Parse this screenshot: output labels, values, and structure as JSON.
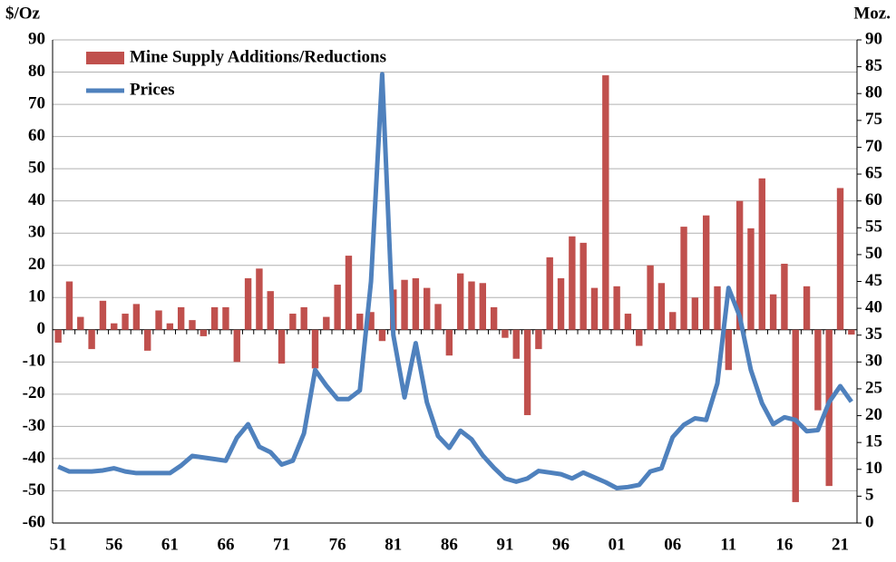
{
  "chart_data": {
    "type": "combo",
    "y_label": "$/Oz",
    "y2_label": "Moz.",
    "categories": [
      "51",
      null,
      null,
      null,
      null,
      "56",
      null,
      null,
      null,
      null,
      "61",
      null,
      null,
      null,
      null,
      "66",
      null,
      null,
      null,
      null,
      "71",
      null,
      null,
      null,
      null,
      "76",
      null,
      null,
      null,
      null,
      "81",
      null,
      null,
      null,
      null,
      "86",
      null,
      null,
      null,
      null,
      "91",
      null,
      null,
      null,
      null,
      "96",
      null,
      null,
      null,
      null,
      "01",
      null,
      null,
      null,
      null,
      "06",
      null,
      null,
      null,
      null,
      "11",
      null,
      null,
      null,
      null,
      "16",
      null,
      null,
      null,
      null,
      "21",
      null
    ],
    "series": [
      {
        "name": "Mine Supply Additions/Reductions",
        "type": "bar",
        "color": "#c0504d",
        "values": [
          -4,
          15,
          4,
          -6,
          9,
          2,
          5,
          8,
          -6.5,
          6,
          2,
          7,
          3,
          -2,
          7,
          7,
          -10,
          16,
          19,
          12,
          -10.5,
          5,
          7,
          -12,
          4,
          14,
          23,
          5,
          5.5,
          -3.5,
          12.5,
          15.5,
          16,
          13,
          8,
          -8,
          17.5,
          15,
          14.5,
          7,
          -2.5,
          -9,
          -26.5,
          -6,
          22.5,
          16,
          29,
          27,
          13,
          79,
          13.5,
          5,
          -5,
          20,
          14.5,
          5.5,
          32,
          10,
          35.5,
          13.5,
          -12.5,
          40,
          31.5,
          47,
          11,
          20.5,
          -53.5,
          13.5,
          -25,
          -48.5,
          44,
          -1.5
        ]
      },
      {
        "name": "Prices",
        "type": "line",
        "axis": "y2",
        "color": "#4f81bd",
        "values": [
          10.5,
          9.6,
          9.6,
          9.6,
          9.8,
          10.2,
          9.6,
          9.3,
          9.3,
          9.3,
          9.3,
          10.7,
          12.5,
          12.2,
          11.9,
          11.6,
          15.9,
          18.4,
          14.2,
          13.2,
          10.9,
          11.6,
          16.7,
          28.5,
          25.6,
          23.1,
          23.1,
          24.7,
          45,
          83.6,
          35,
          23.4,
          33.5,
          22.5,
          16.2,
          14,
          17.2,
          15.6,
          12.6,
          10.3,
          8.3,
          7.7,
          8.3,
          9.7,
          9.4,
          9.1,
          8.3,
          9.4,
          8.5,
          7.6,
          6.5,
          6.7,
          7.1,
          9.6,
          10.2,
          16,
          18.3,
          19.5,
          19.2,
          26,
          43.8,
          38.5,
          28.5,
          22.3,
          18.4,
          19.7,
          19.2,
          17.1,
          17.3,
          22.5,
          25.5,
          22.6
        ]
      }
    ],
    "ylim": [
      -60,
      90
    ],
    "yticks": [
      -60,
      -50,
      -40,
      -30,
      -20,
      -10,
      0,
      10,
      20,
      30,
      40,
      50,
      60,
      70,
      80,
      90
    ],
    "y2lim": [
      0,
      90
    ],
    "y2ticks": [
      0,
      5,
      10,
      15,
      20,
      25,
      30,
      35,
      40,
      45,
      50,
      55,
      60,
      65,
      70,
      75,
      80,
      85,
      90
    ],
    "grid": true,
    "legend": "top-left"
  }
}
